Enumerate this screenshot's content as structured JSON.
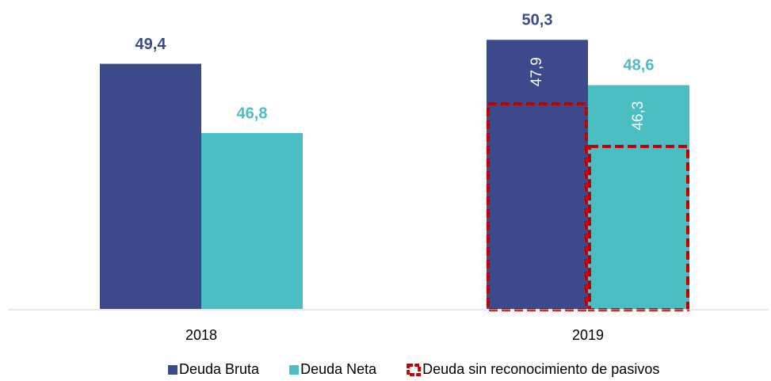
{
  "chart_data": {
    "type": "bar",
    "categories": [
      "2018",
      "2019"
    ],
    "series": [
      {
        "name": "Deuda Bruta",
        "color": "#3c4a8b",
        "values": [
          49.4,
          50.3
        ],
        "value_labels": [
          "49,4",
          "50,3"
        ]
      },
      {
        "name": "Deuda Neta",
        "color": "#4bbec3",
        "values": [
          46.8,
          48.6
        ],
        "value_labels": [
          "46,8",
          "48,6"
        ]
      }
    ],
    "overlay": {
      "name": "Deuda sin reconocimiento de pasivos",
      "color": "#c00000",
      "values": [
        [
          null,
          null
        ],
        [
          47.9,
          46.3
        ]
      ],
      "value_labels": [
        [
          null,
          null
        ],
        [
          "47,9",
          "46,3"
        ]
      ]
    },
    "ylim": [
      40.2,
      51.2
    ]
  }
}
